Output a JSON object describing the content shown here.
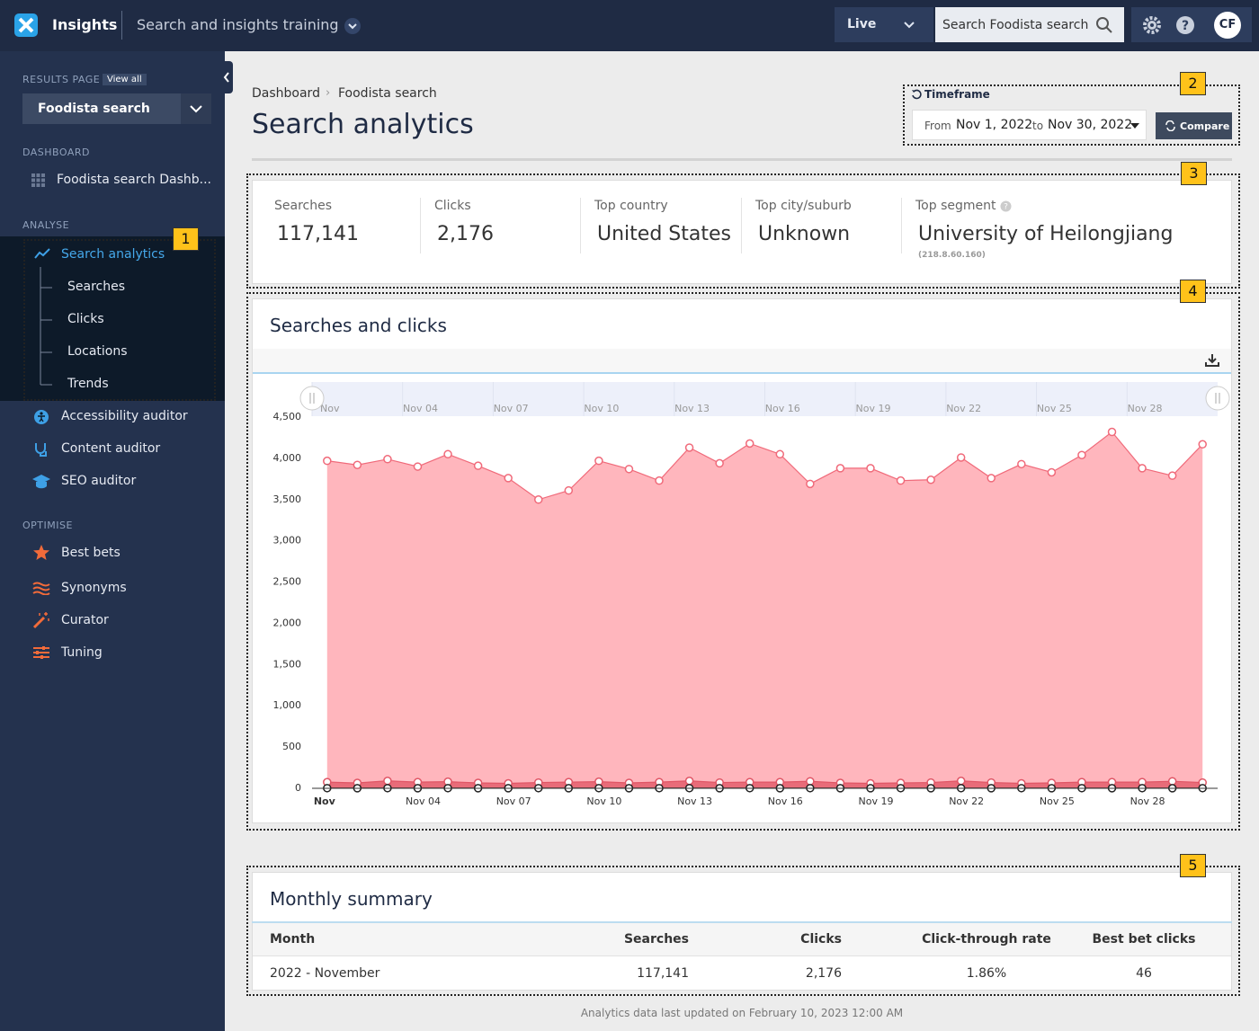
{
  "topbar": {
    "app": "Insights",
    "project": "Search and insights training",
    "environment": "Live",
    "search_placeholder": "Search Foodista search",
    "avatar": "CF"
  },
  "sidebar": {
    "results_page": "RESULTS PAGE",
    "view_all": "View all",
    "collection": "Foodista search",
    "dashboard_heading": "DASHBOARD",
    "dashboard_item": "Foodista search Dashb...",
    "analyse_heading": "ANALYSE",
    "analyse_items": [
      "Search analytics",
      "Searches",
      "Clicks",
      "Locations",
      "Trends",
      "Accessibility auditor",
      "Content auditor",
      "SEO auditor"
    ],
    "optimise_heading": "OPTIMISE",
    "optimise_items": [
      "Best bets",
      "Synonyms",
      "Curator",
      "Tuning"
    ]
  },
  "callouts": [
    "1",
    "2",
    "3",
    "4",
    "5"
  ],
  "breadcrumb": [
    "Dashboard",
    "Foodista search"
  ],
  "page_title": "Search analytics",
  "timeframe": {
    "label": "Timeframe",
    "from": "From",
    "start": "Nov 1, 2022",
    "to": "to",
    "end": "Nov 30, 2022",
    "compare": "Compare"
  },
  "stats": [
    {
      "label": "Searches",
      "value": "117,141"
    },
    {
      "label": "Clicks",
      "value": "2,176"
    },
    {
      "label": "Top country",
      "value": "United States"
    },
    {
      "label": "Top city/suburb",
      "value": "Unknown"
    },
    {
      "label": "Top segment",
      "value": "University of Heilongjiang",
      "detail": "(218.8.60.160)"
    }
  ],
  "chart_data": {
    "type": "area",
    "title": "Searches and clicks",
    "categories": [
      "Nov",
      null,
      null,
      "Nov 04",
      null,
      null,
      "Nov 07",
      null,
      null,
      "Nov 10",
      null,
      null,
      "Nov 13",
      null,
      null,
      "Nov 16",
      null,
      null,
      "Nov 19",
      null,
      null,
      "Nov 22",
      null,
      null,
      "Nov 25",
      null,
      null,
      "Nov 28",
      null,
      null
    ],
    "series": [
      {
        "color": "#f06a7a",
        "values": [
          3970,
          3920,
          3990,
          3900,
          4050,
          3910,
          3760,
          3500,
          3610,
          3970,
          3870,
          3730,
          4130,
          3940,
          4180,
          4050,
          3690,
          3880,
          3880,
          3730,
          3740,
          4010,
          3760,
          3930,
          3830,
          4040,
          4320,
          3880,
          3790,
          4170
        ]
      },
      {
        "color": "#e05565",
        "values": [
          75,
          65,
          90,
          75,
          80,
          65,
          60,
          70,
          75,
          80,
          65,
          75,
          90,
          70,
          75,
          75,
          85,
          65,
          60,
          65,
          70,
          90,
          70,
          60,
          65,
          75,
          75,
          75,
          85,
          70
        ]
      },
      {
        "color": "#222222",
        "values": [
          2,
          1,
          2,
          1,
          2,
          1,
          1,
          2,
          1,
          2,
          1,
          2,
          2,
          1,
          2,
          1,
          2,
          1,
          1,
          2,
          1,
          2,
          1,
          2,
          1,
          2,
          1,
          2,
          1,
          2
        ]
      }
    ],
    "ylim": [
      0,
      4500
    ],
    "yticks": [
      0,
      500,
      {
        "value": 1000,
        "label": "1,000"
      },
      {
        "value": 1500,
        "label": "1,500"
      },
      {
        "value": 2000,
        "label": "2,000"
      },
      {
        "value": 2500,
        "label": "2,500"
      },
      {
        "value": 3000,
        "label": "3,000"
      },
      {
        "value": 3500,
        "label": "3,500"
      },
      {
        "value": 4000,
        "label": "4,000"
      },
      {
        "value": 4500,
        "label": "4,500"
      }
    ]
  },
  "table": {
    "title": "Monthly summary",
    "columns": [
      "Month",
      "Searches",
      "Clicks",
      "Click-through rate",
      "Best bet clicks"
    ],
    "rows": [
      [
        "2022 - November",
        "117,141",
        "2,176",
        "1.86%",
        "46"
      ]
    ]
  },
  "footer": "Analytics data last updated on February 10, 2023 12:00 AM"
}
